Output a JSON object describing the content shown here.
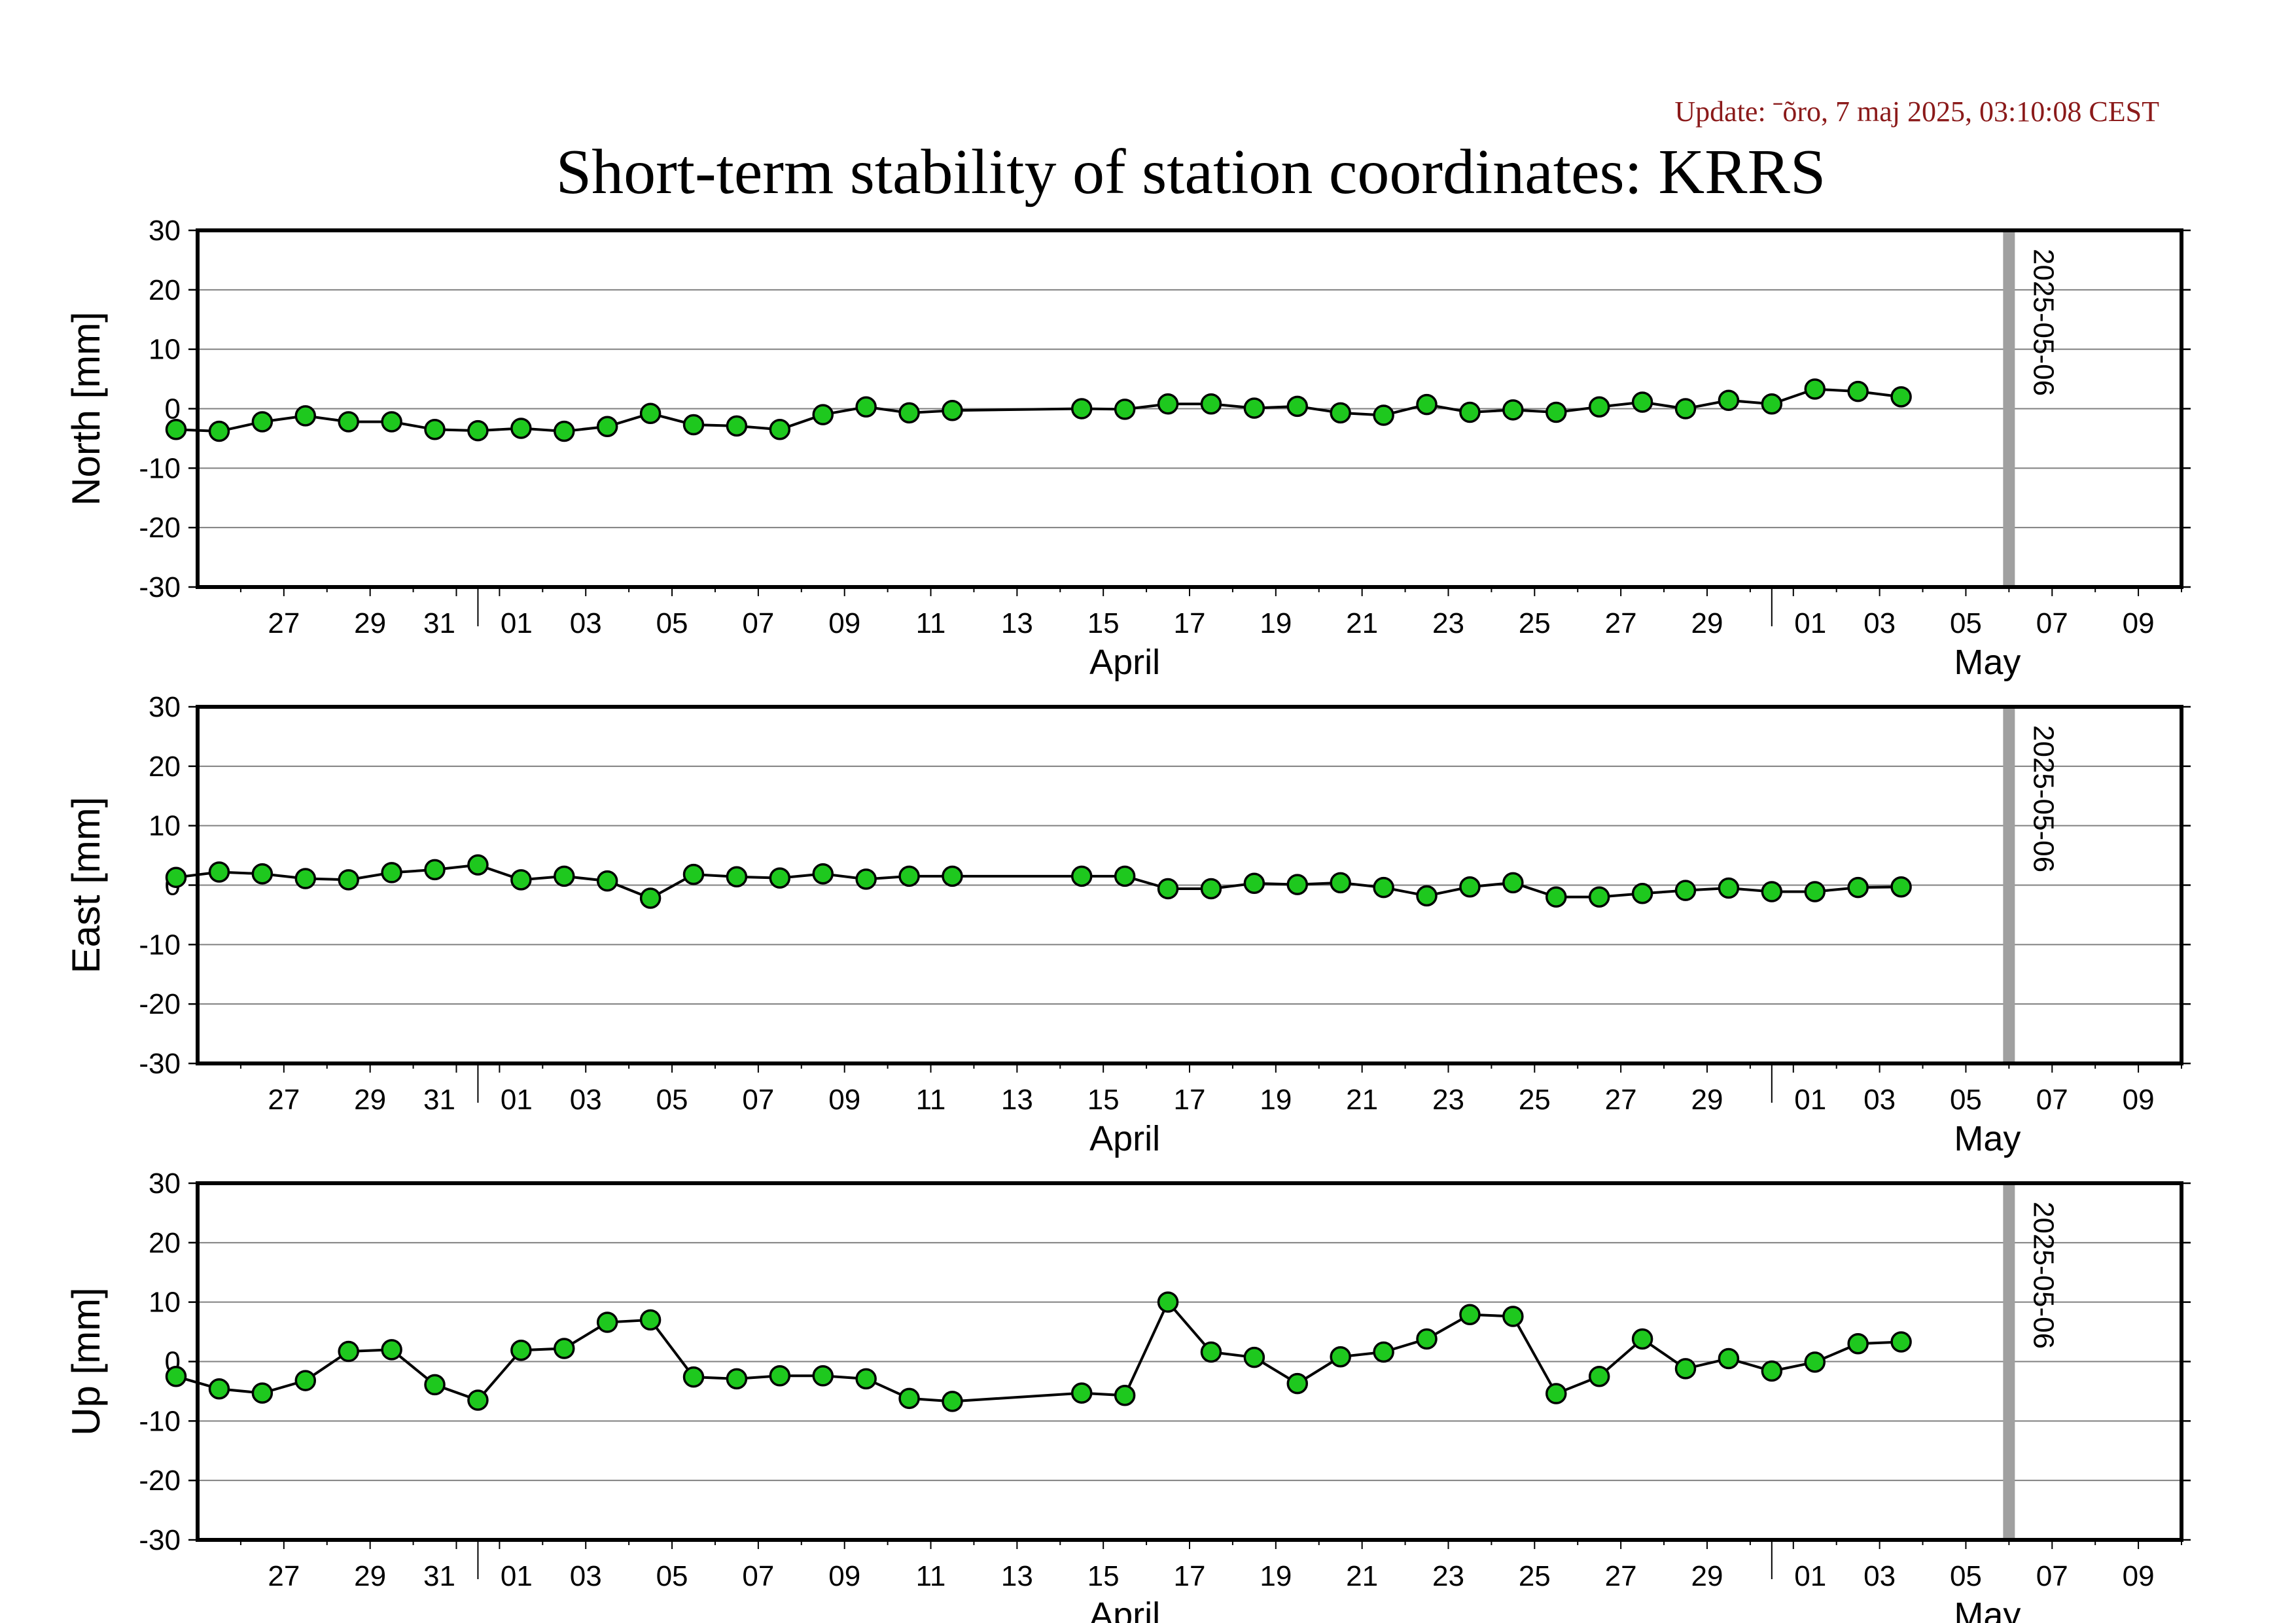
{
  "update_text": "Update: ˉõro, 7 maj 2025, 03:10:08 CEST",
  "title": "Short-term stability of station coordinates: KRRS",
  "colors": {
    "marker_fill": "#1ec81e",
    "marker_stroke": "#000000",
    "line": "#000000",
    "gridline": "#808080",
    "event_bar": "#a0a0a0",
    "update": "#8b1a1a"
  },
  "chart_data": [
    {
      "type": "line",
      "ylabel": "North [mm]",
      "ylim": [
        -30,
        30
      ],
      "yticks": [
        30,
        20,
        10,
        0,
        -10,
        -20,
        -30
      ],
      "xlim": [
        "2025-03-25T12:00",
        "2025-05-10T12:00"
      ],
      "xticks": [
        "27",
        "29",
        "31",
        "01",
        "03",
        "05",
        "07",
        "09",
        "11",
        "13",
        "15",
        "17",
        "19",
        "21",
        "23",
        "25",
        "27",
        "29",
        "01",
        "03",
        "05",
        "07",
        "09"
      ],
      "month_labels": [
        "April",
        "May"
      ],
      "event_marker": {
        "date": "2025-05-06",
        "label": "2025-05-06"
      },
      "grid": true,
      "series": [
        {
          "x": [
            "2025-03-25",
            "2025-03-26",
            "2025-03-27",
            "2025-03-28",
            "2025-03-29",
            "2025-03-30",
            "2025-03-31",
            "2025-04-01",
            "2025-04-02",
            "2025-04-03",
            "2025-04-04",
            "2025-04-05",
            "2025-04-06",
            "2025-04-07",
            "2025-04-08",
            "2025-04-09",
            "2025-04-10",
            "2025-04-11",
            "2025-04-12",
            "2025-04-15",
            "2025-04-16",
            "2025-04-17",
            "2025-04-18",
            "2025-04-19",
            "2025-04-20",
            "2025-04-21",
            "2025-04-22",
            "2025-04-23",
            "2025-04-24",
            "2025-04-25",
            "2025-04-26",
            "2025-04-27",
            "2025-04-28",
            "2025-04-29",
            "2025-04-30",
            "2025-05-01",
            "2025-05-02",
            "2025-05-03",
            "2025-05-04"
          ],
          "values": [
            -3.5,
            -3.8,
            -2.2,
            -1.2,
            -2.2,
            -2.2,
            -3.5,
            -3.7,
            -3.3,
            -3.8,
            -3.0,
            -0.8,
            -2.7,
            -2.9,
            -3.5,
            -1.0,
            0.3,
            -0.7,
            -0.3,
            0.0,
            -0.1,
            0.8,
            0.8,
            0.1,
            0.4,
            -0.7,
            -1.1,
            0.7,
            -0.6,
            -0.2,
            -0.6,
            0.3,
            1.1,
            0.0,
            1.4,
            0.8,
            3.3,
            2.9,
            2.0
          ]
        }
      ]
    },
    {
      "type": "line",
      "ylabel": "East [mm]",
      "ylim": [
        -30,
        30
      ],
      "yticks": [
        30,
        20,
        10,
        0,
        -10,
        -20,
        -30
      ],
      "xlim": [
        "2025-03-25T12:00",
        "2025-05-10T12:00"
      ],
      "xticks": [
        "27",
        "29",
        "31",
        "01",
        "03",
        "05",
        "07",
        "09",
        "11",
        "13",
        "15",
        "17",
        "19",
        "21",
        "23",
        "25",
        "27",
        "29",
        "01",
        "03",
        "05",
        "07",
        "09"
      ],
      "month_labels": [
        "April",
        "May"
      ],
      "event_marker": {
        "date": "2025-05-06",
        "label": "2025-05-06"
      },
      "grid": true,
      "series": [
        {
          "x": [
            "2025-03-25",
            "2025-03-26",
            "2025-03-27",
            "2025-03-28",
            "2025-03-29",
            "2025-03-30",
            "2025-03-31",
            "2025-04-01",
            "2025-04-02",
            "2025-04-03",
            "2025-04-04",
            "2025-04-05",
            "2025-04-06",
            "2025-04-07",
            "2025-04-08",
            "2025-04-09",
            "2025-04-10",
            "2025-04-11",
            "2025-04-12",
            "2025-04-15",
            "2025-04-16",
            "2025-04-17",
            "2025-04-18",
            "2025-04-19",
            "2025-04-20",
            "2025-04-21",
            "2025-04-22",
            "2025-04-23",
            "2025-04-24",
            "2025-04-25",
            "2025-04-26",
            "2025-04-27",
            "2025-04-28",
            "2025-04-29",
            "2025-04-30",
            "2025-05-01",
            "2025-05-02",
            "2025-05-03",
            "2025-05-04"
          ],
          "values": [
            1.3,
            2.2,
            1.9,
            1.1,
            0.9,
            2.1,
            2.6,
            3.4,
            0.9,
            1.5,
            0.7,
            -2.2,
            1.8,
            1.4,
            1.2,
            1.9,
            1.0,
            1.5,
            1.5,
            1.5,
            1.5,
            -0.6,
            -0.6,
            0.3,
            0.1,
            0.4,
            -0.4,
            -1.8,
            -0.3,
            0.4,
            -2.0,
            -2.0,
            -1.4,
            -0.9,
            -0.5,
            -1.1,
            -1.1,
            -0.4,
            -0.3
          ]
        }
      ]
    },
    {
      "type": "line",
      "ylabel": "Up [mm]",
      "ylim": [
        -30,
        30
      ],
      "yticks": [
        30,
        20,
        10,
        0,
        -10,
        -20,
        -30
      ],
      "xlim": [
        "2025-03-25T12:00",
        "2025-05-10T12:00"
      ],
      "xticks": [
        "27",
        "29",
        "31",
        "01",
        "03",
        "05",
        "07",
        "09",
        "11",
        "13",
        "15",
        "17",
        "19",
        "21",
        "23",
        "25",
        "27",
        "29",
        "01",
        "03",
        "05",
        "07",
        "09"
      ],
      "month_labels": [
        "April",
        "May"
      ],
      "event_marker": {
        "date": "2025-05-06",
        "label": "2025-05-06"
      },
      "grid": true,
      "series": [
        {
          "x": [
            "2025-03-25",
            "2025-03-26",
            "2025-03-27",
            "2025-03-28",
            "2025-03-29",
            "2025-03-30",
            "2025-03-31",
            "2025-04-01",
            "2025-04-02",
            "2025-04-03",
            "2025-04-04",
            "2025-04-05",
            "2025-04-06",
            "2025-04-07",
            "2025-04-08",
            "2025-04-09",
            "2025-04-10",
            "2025-04-11",
            "2025-04-12",
            "2025-04-15",
            "2025-04-16",
            "2025-04-17",
            "2025-04-18",
            "2025-04-19",
            "2025-04-20",
            "2025-04-21",
            "2025-04-22",
            "2025-04-23",
            "2025-04-24",
            "2025-04-25",
            "2025-04-26",
            "2025-04-27",
            "2025-04-28",
            "2025-04-29",
            "2025-04-30",
            "2025-05-01",
            "2025-05-02",
            "2025-05-03",
            "2025-05-04"
          ],
          "values": [
            -2.5,
            -4.6,
            -5.3,
            -3.2,
            1.7,
            2.0,
            -3.9,
            -6.5,
            1.9,
            2.2,
            6.6,
            7.0,
            -2.6,
            -2.9,
            -2.4,
            -2.4,
            -2.9,
            -6.2,
            -6.7,
            -5.3,
            -5.7,
            10.0,
            1.6,
            0.7,
            -3.7,
            0.8,
            1.6,
            3.8,
            7.9,
            7.6,
            -5.4,
            -2.5,
            3.8,
            -1.2,
            0.5,
            -1.6,
            -0.1,
            3.0,
            3.3
          ]
        }
      ]
    }
  ]
}
